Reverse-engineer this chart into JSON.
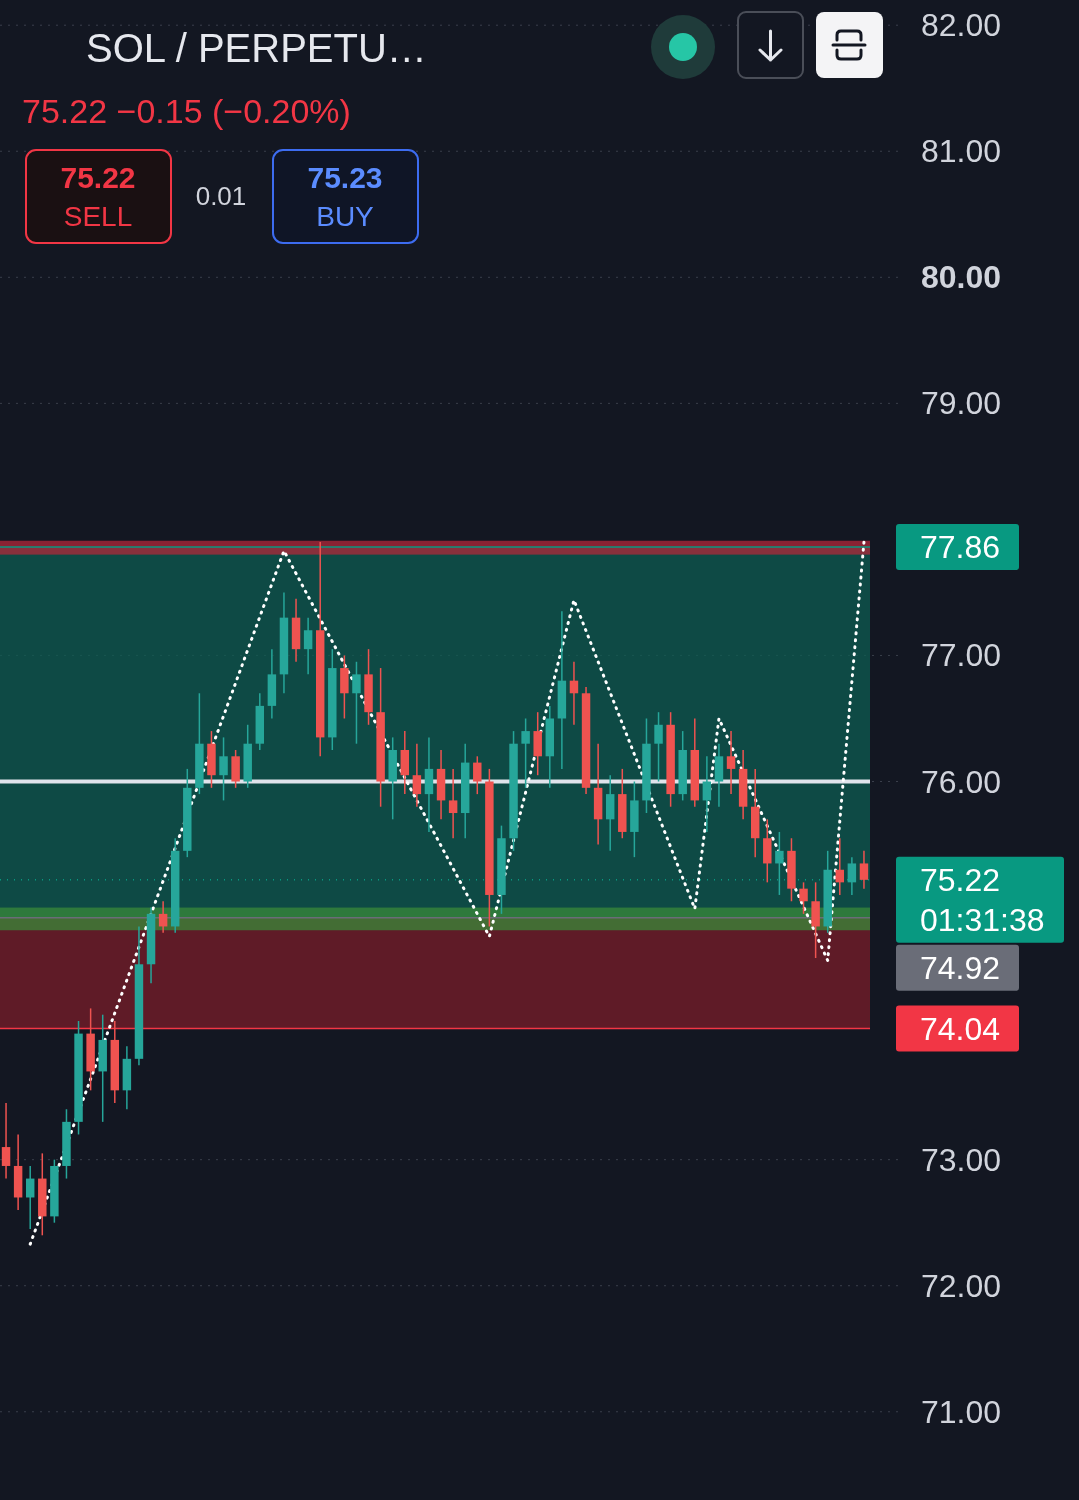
{
  "chart_data": {
    "type": "candlestick",
    "title": "SOL / PERPETU…",
    "subtitle": "75.22  −0.15 (−0.20%)",
    "categories": [
      null,
      null,
      null,
      null,
      null,
      null,
      null,
      null,
      null,
      null,
      null,
      null,
      null,
      null,
      null,
      null,
      null,
      null,
      null,
      null,
      null,
      null,
      null,
      null,
      null,
      null,
      null,
      null,
      null,
      null,
      null,
      null,
      null,
      null,
      null,
      null,
      null,
      null,
      null,
      null,
      null,
      null,
      null,
      null,
      null,
      null,
      null,
      null,
      null,
      null,
      null,
      null,
      null,
      null,
      null,
      null,
      null,
      null,
      null,
      null,
      null,
      null,
      null,
      null,
      null,
      null,
      null,
      null,
      null,
      null,
      null,
      null
    ],
    "ohlc": [
      [
        73.1,
        73.45,
        72.85,
        72.95
      ],
      [
        72.95,
        73.2,
        72.6,
        72.7
      ],
      [
        72.7,
        72.95,
        72.45,
        72.85
      ],
      [
        72.85,
        73.05,
        72.4,
        72.55
      ],
      [
        72.55,
        73.0,
        72.5,
        72.95
      ],
      [
        72.95,
        73.4,
        72.85,
        73.3
      ],
      [
        73.3,
        74.1,
        73.2,
        74.0
      ],
      [
        74.0,
        74.2,
        73.55,
        73.7
      ],
      [
        73.7,
        74.15,
        73.3,
        73.95
      ],
      [
        73.95,
        74.1,
        73.45,
        73.55
      ],
      [
        73.55,
        73.9,
        73.4,
        73.8
      ],
      [
        73.8,
        74.85,
        73.75,
        74.55
      ],
      [
        74.55,
        75.0,
        74.4,
        74.95
      ],
      [
        74.95,
        75.05,
        74.8,
        74.85
      ],
      [
        74.85,
        75.55,
        74.8,
        75.45
      ],
      [
        75.45,
        76.1,
        75.4,
        75.95
      ],
      [
        75.95,
        76.7,
        75.9,
        76.3
      ],
      [
        76.3,
        76.4,
        75.95,
        76.05
      ],
      [
        76.05,
        76.35,
        75.85,
        76.2
      ],
      [
        76.2,
        76.25,
        75.95,
        76.0
      ],
      [
        76.0,
        76.45,
        75.95,
        76.3
      ],
      [
        76.3,
        76.7,
        76.25,
        76.6
      ],
      [
        76.6,
        77.05,
        76.5,
        76.85
      ],
      [
        76.85,
        77.5,
        76.7,
        77.3
      ],
      [
        77.3,
        77.45,
        76.95,
        77.05
      ],
      [
        77.05,
        77.3,
        76.85,
        77.2
      ],
      [
        77.2,
        77.9,
        76.2,
        76.35
      ],
      [
        76.35,
        77.05,
        76.25,
        76.9
      ],
      [
        76.9,
        77.0,
        76.5,
        76.7
      ],
      [
        76.7,
        76.95,
        76.3,
        76.85
      ],
      [
        76.85,
        77.05,
        76.45,
        76.55
      ],
      [
        76.55,
        76.9,
        75.8,
        76.0
      ],
      [
        76.0,
        76.35,
        75.7,
        76.25
      ],
      [
        76.25,
        76.4,
        75.9,
        76.05
      ],
      [
        76.05,
        76.3,
        75.8,
        75.9
      ],
      [
        75.9,
        76.35,
        75.6,
        76.1
      ],
      [
        76.1,
        76.25,
        75.7,
        75.85
      ],
      [
        75.85,
        76.1,
        75.55,
        75.75
      ],
      [
        75.75,
        76.3,
        75.55,
        76.15
      ],
      [
        76.15,
        76.2,
        75.9,
        76.0
      ],
      [
        76.0,
        76.1,
        74.85,
        75.1
      ],
      [
        75.1,
        75.65,
        74.95,
        75.55
      ],
      [
        75.55,
        76.4,
        75.45,
        76.3
      ],
      [
        76.3,
        76.5,
        75.95,
        76.4
      ],
      [
        76.4,
        76.55,
        76.05,
        76.2
      ],
      [
        76.2,
        76.6,
        75.95,
        76.5
      ],
      [
        76.5,
        77.35,
        76.1,
        76.8
      ],
      [
        76.8,
        76.95,
        76.45,
        76.7
      ],
      [
        76.7,
        76.75,
        75.9,
        75.95
      ],
      [
        75.95,
        76.3,
        75.5,
        75.7
      ],
      [
        75.7,
        76.05,
        75.45,
        75.9
      ],
      [
        75.9,
        76.1,
        75.55,
        75.6
      ],
      [
        75.6,
        76.0,
        75.4,
        75.85
      ],
      [
        75.85,
        76.5,
        75.75,
        76.3
      ],
      [
        76.3,
        76.55,
        76.0,
        76.45
      ],
      [
        76.45,
        76.55,
        75.8,
        75.9
      ],
      [
        75.9,
        76.4,
        75.85,
        76.25
      ],
      [
        76.25,
        76.5,
        75.8,
        75.85
      ],
      [
        75.85,
        76.2,
        75.6,
        76.0
      ],
      [
        76.0,
        76.3,
        75.8,
        76.2
      ],
      [
        76.2,
        76.4,
        75.9,
        76.1
      ],
      [
        76.1,
        76.25,
        75.7,
        75.8
      ],
      [
        75.8,
        76.1,
        75.4,
        75.55
      ],
      [
        75.55,
        75.7,
        75.2,
        75.35
      ],
      [
        75.35,
        75.6,
        75.1,
        75.45
      ],
      [
        75.45,
        75.55,
        75.05,
        75.15
      ],
      [
        75.15,
        75.2,
        74.95,
        75.05
      ],
      [
        75.05,
        75.2,
        74.6,
        74.85
      ],
      [
        74.85,
        75.45,
        74.8,
        75.3
      ],
      [
        75.3,
        75.55,
        75.1,
        75.2
      ],
      [
        75.2,
        75.4,
        75.1,
        75.35
      ],
      [
        75.35,
        75.45,
        75.15,
        75.22
      ]
    ],
    "series": [
      {
        "type": "line",
        "color": "#ffffff",
        "line_style": "dotted",
        "values": [
          null,
          null,
          72.33,
          null,
          null,
          null,
          null,
          null,
          null,
          null,
          null,
          null,
          null,
          null,
          null,
          null,
          null,
          null,
          null,
          null,
          null,
          null,
          null,
          77.83,
          null,
          null,
          null,
          null,
          null,
          null,
          null,
          null,
          null,
          null,
          null,
          null,
          null,
          null,
          null,
          null,
          74.77,
          null,
          null,
          null,
          null,
          null,
          null,
          77.44,
          null,
          null,
          null,
          null,
          null,
          null,
          null,
          null,
          null,
          74.99,
          null,
          76.5,
          null,
          null,
          null,
          null,
          null,
          null,
          null,
          null,
          74.58,
          null,
          null,
          77.9
        ]
      }
    ],
    "ylim": [
      70.3,
      82.2
    ],
    "yticks": [
      {
        "value": 71,
        "label": "71.00"
      },
      {
        "value": 72,
        "label": "72.00"
      },
      {
        "value": 73,
        "label": "73.00"
      },
      {
        "value": 76,
        "label": "76.00"
      },
      {
        "value": 77,
        "label": "77.00"
      },
      {
        "value": 79,
        "label": "79.00"
      },
      {
        "value": 80,
        "label": "80.00"
      },
      {
        "value": 81,
        "label": "81.00"
      },
      {
        "value": 82,
        "label": "82.00"
      }
    ],
    "tick_labels": "y",
    "grid": "y",
    "ref_lines": [
      {
        "axis": "y",
        "value": 77.86,
        "label": "77.86",
        "color": "#089981"
      },
      {
        "axis": "y",
        "value": 75.22,
        "label": "75.22",
        "color": "#089981",
        "line_style": "dotted"
      },
      {
        "axis": "y",
        "value": 74.92,
        "label": "74.92",
        "color": "#6a6d78"
      },
      {
        "axis": "y",
        "value": 74.04,
        "label": "74.04",
        "color": "#f23645"
      },
      {
        "axis": "y",
        "value": 76.0,
        "color": "#e0e3eb"
      }
    ],
    "bands": [
      {
        "axis": "y",
        "from": 74.92,
        "to": 77.86,
        "color": "#0d5c52"
      },
      {
        "axis": "y",
        "from": 74.04,
        "to": 74.92,
        "color": "#7a1e2a"
      },
      {
        "axis": "y",
        "from": 77.8,
        "to": 77.91,
        "color": "#b2283a"
      },
      {
        "axis": "y",
        "from": 74.82,
        "to": 75.0,
        "color": "#3a8a3a"
      }
    ],
    "annotations": [
      "75.22",
      "SELL",
      "0.01",
      "75.23",
      "BUY",
      "01:31:38"
    ]
  }
}
